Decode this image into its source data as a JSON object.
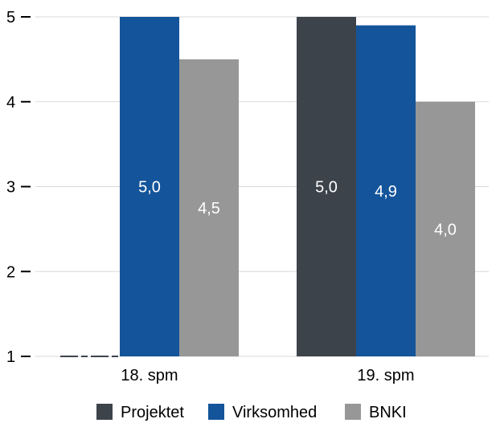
{
  "chart_data": {
    "type": "bar",
    "categories": [
      "18. spm",
      "19. spm"
    ],
    "series": [
      {
        "name": "Projektet",
        "color": "#3d434b",
        "values": [
          1.0,
          5.0
        ],
        "labels": [
          "",
          "5,0"
        ]
      },
      {
        "name": "Virksomhed",
        "color": "#14549a",
        "values": [
          5.0,
          4.9
        ],
        "labels": [
          "5,0",
          "4,9"
        ]
      },
      {
        "name": "BNKI",
        "color": "#979797",
        "values": [
          4.5,
          4.0
        ],
        "labels": [
          "4,5",
          "4,0"
        ]
      }
    ],
    "yticks": [
      "1",
      "2",
      "3",
      "4",
      "5"
    ],
    "ylim": [
      1,
      5
    ],
    "grid": true,
    "legend": "bottom"
  }
}
